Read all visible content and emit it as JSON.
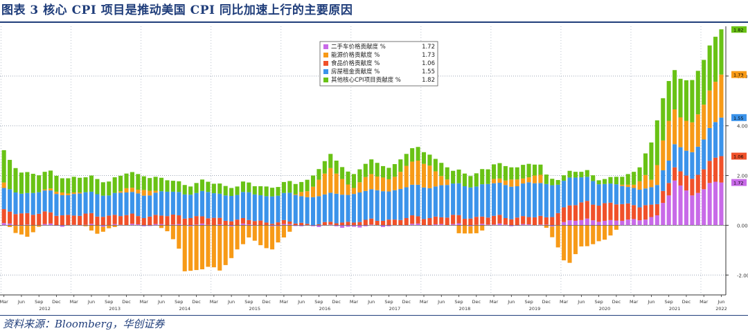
{
  "header": {
    "title": "图表 3 核心 CPI 项目是推动美国 CPI 同比加速上行的主要原因"
  },
  "footer": {
    "source": "资料来源：Bloomberg，华创证券"
  },
  "chart_data": {
    "type": "bar",
    "stacked": true,
    "title": "图表 3 核心 CPI 项目是推动美国 CPI 同比加速上行的主要原因",
    "xlabel": "",
    "ylabel": "%",
    "ylim": [
      -2.8,
      8.0
    ],
    "yticks": [
      -2.0,
      0.0,
      2.0,
      4.0,
      6.0
    ],
    "ytick_labels": [
      "-2.00",
      "0.00",
      "2.00",
      "4.00",
      "6.00"
    ],
    "gridlines": "dotted",
    "legend_position": "top-center",
    "colors": {
      "used_cars": "#c86ae8",
      "energy": "#f79a17",
      "food": "#f0512a",
      "shelter": "#3b93ea",
      "other_core": "#69c215"
    },
    "start": {
      "year": 2012,
      "month": 3
    },
    "month_labels": [
      "Mar",
      "Jun",
      "Sep",
      "Dec"
    ],
    "year_labels": [
      "2012",
      "2013",
      "2014",
      "2015",
      "2016",
      "2017",
      "2018",
      "2019",
      "2020",
      "2021",
      "2022"
    ],
    "series": [
      {
        "name": "二手车价格贡献度 %",
        "key": "used_cars",
        "last": 1.72,
        "anchors": [
          [
            0,
            0.03
          ],
          [
            12,
            0.0
          ],
          [
            24,
            0.02
          ],
          [
            36,
            0.02
          ],
          [
            48,
            0.0
          ],
          [
            60,
            -0.06
          ],
          [
            72,
            0.03
          ],
          [
            84,
            0.03
          ],
          [
            94,
            0.0
          ],
          [
            97,
            0.15
          ],
          [
            100,
            0.25
          ],
          [
            104,
            0.15
          ],
          [
            108,
            0.25
          ],
          [
            110,
            0.25
          ],
          [
            112,
            0.4
          ],
          [
            113,
            0.9
          ],
          [
            114,
            1.2
          ],
          [
            115,
            1.8
          ],
          [
            116,
            1.6
          ],
          [
            117,
            1.4
          ],
          [
            118,
            1.2
          ],
          [
            119,
            1.3
          ],
          [
            120,
            1.45
          ],
          [
            121,
            1.7
          ],
          [
            122,
            1.75
          ],
          [
            123,
            1.72
          ]
        ]
      },
      {
        "name": "能源价格贡献度 %",
        "key": "energy",
        "last": 1.73,
        "anchors": [
          [
            0,
            0.2
          ],
          [
            2,
            -0.3
          ],
          [
            4,
            -0.4
          ],
          [
            6,
            -0.1
          ],
          [
            8,
            0.1
          ],
          [
            10,
            0.1
          ],
          [
            12,
            0.1
          ],
          [
            14,
            -0.1
          ],
          [
            16,
            -0.3
          ],
          [
            18,
            -0.1
          ],
          [
            20,
            0.05
          ],
          [
            22,
            0.15
          ],
          [
            24,
            0.25
          ],
          [
            26,
            0.1
          ],
          [
            28,
            -0.3
          ],
          [
            30,
            -0.9
          ],
          [
            31,
            -1.8
          ],
          [
            33,
            -1.8
          ],
          [
            35,
            -1.7
          ],
          [
            37,
            -1.8
          ],
          [
            40,
            -1.0
          ],
          [
            42,
            -0.5
          ],
          [
            44,
            -0.8
          ],
          [
            46,
            -0.9
          ],
          [
            48,
            -0.5
          ],
          [
            50,
            0.0
          ],
          [
            52,
            0.3
          ],
          [
            55,
            0.8
          ],
          [
            56,
            1.0
          ],
          [
            58,
            0.6
          ],
          [
            60,
            0.3
          ],
          [
            63,
            0.6
          ],
          [
            66,
            0.5
          ],
          [
            69,
            0.8
          ],
          [
            71,
            1.0
          ],
          [
            73,
            0.9
          ],
          [
            75,
            0.4
          ],
          [
            78,
            -0.3
          ],
          [
            81,
            -0.3
          ],
          [
            84,
            0.1
          ],
          [
            87,
            0.3
          ],
          [
            90,
            0.2
          ],
          [
            92,
            0.3
          ],
          [
            94,
            -0.4
          ],
          [
            96,
            -1.4
          ],
          [
            97,
            -1.5
          ],
          [
            99,
            -0.9
          ],
          [
            101,
            -0.7
          ],
          [
            103,
            -0.6
          ],
          [
            104,
            -0.4
          ],
          [
            106,
            0.0
          ],
          [
            108,
            0.2
          ],
          [
            110,
            0.5
          ],
          [
            111,
            0.3
          ],
          [
            112,
            0.8
          ],
          [
            114,
            1.6
          ],
          [
            116,
            1.2
          ],
          [
            118,
            1.2
          ],
          [
            120,
            1.4
          ],
          [
            123,
            1.73
          ]
        ]
      },
      {
        "name": "食品价格贡献度 %",
        "key": "food",
        "last": 1.06,
        "anchors": [
          [
            0,
            0.5
          ],
          [
            12,
            0.4
          ],
          [
            24,
            0.35
          ],
          [
            30,
            0.35
          ],
          [
            36,
            0.25
          ],
          [
            48,
            0.1
          ],
          [
            54,
            0.05
          ],
          [
            60,
            0.15
          ],
          [
            72,
            0.3
          ],
          [
            84,
            0.3
          ],
          [
            93,
            0.3
          ],
          [
            95,
            0.5
          ],
          [
            97,
            0.6
          ],
          [
            100,
            0.7
          ],
          [
            106,
            0.65
          ],
          [
            110,
            0.55
          ],
          [
            112,
            0.45
          ],
          [
            114,
            0.5
          ],
          [
            117,
            0.6
          ],
          [
            120,
            0.8
          ],
          [
            123,
            1.06
          ]
        ]
      },
      {
        "name": "房屋租金贡献度 %",
        "key": "shelter",
        "last": 1.55,
        "anchors": [
          [
            0,
            0.85
          ],
          [
            12,
            0.85
          ],
          [
            24,
            0.9
          ],
          [
            36,
            1.0
          ],
          [
            48,
            1.1
          ],
          [
            60,
            1.15
          ],
          [
            72,
            1.25
          ],
          [
            84,
            1.3
          ],
          [
            93,
            1.35
          ],
          [
            96,
            1.1
          ],
          [
            100,
            1.0
          ],
          [
            104,
            0.75
          ],
          [
            108,
            0.7
          ],
          [
            111,
            0.7
          ],
          [
            114,
            0.9
          ],
          [
            117,
            1.0
          ],
          [
            120,
            1.2
          ],
          [
            123,
            1.55
          ]
        ]
      },
      {
        "name": "其他核心CPI项目贡献度 %",
        "key": "other_core",
        "last": 1.82,
        "anchors": [
          [
            0,
            1.25
          ],
          [
            3,
            0.9
          ],
          [
            6,
            0.7
          ],
          [
            12,
            0.6
          ],
          [
            20,
            0.6
          ],
          [
            24,
            0.6
          ],
          [
            30,
            0.4
          ],
          [
            36,
            0.4
          ],
          [
            42,
            0.35
          ],
          [
            48,
            0.4
          ],
          [
            60,
            0.55
          ],
          [
            66,
            0.5
          ],
          [
            72,
            0.5
          ],
          [
            78,
            0.5
          ],
          [
            84,
            0.6
          ],
          [
            90,
            0.5
          ],
          [
            92,
            0.4
          ],
          [
            94,
            0.3
          ],
          [
            96,
            0.2
          ],
          [
            100,
            0.25
          ],
          [
            104,
            0.2
          ],
          [
            106,
            0.35
          ],
          [
            109,
            0.6
          ],
          [
            110,
            0.9
          ],
          [
            111,
            1.5
          ],
          [
            112,
            1.8
          ],
          [
            113,
            1.7
          ],
          [
            114,
            1.6
          ],
          [
            116,
            1.55
          ],
          [
            118,
            1.7
          ],
          [
            120,
            1.8
          ],
          [
            123,
            1.82
          ]
        ]
      }
    ]
  }
}
